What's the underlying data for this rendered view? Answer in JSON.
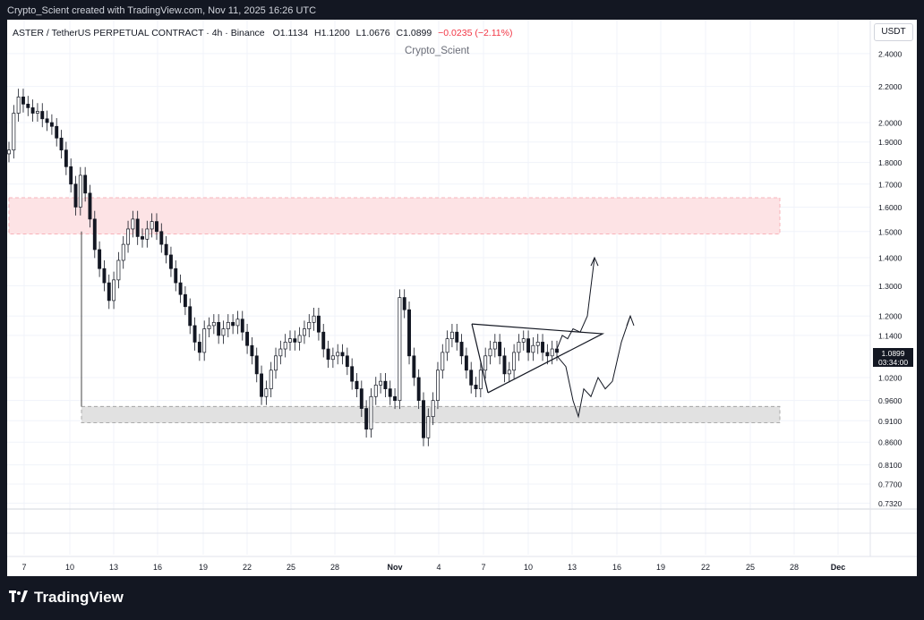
{
  "header": {
    "attribution": "Crypto_Scient created with TradingView.com, Nov 11, 2025 16:26 UTC"
  },
  "legend": {
    "symbol": "ASTER / TetherUS PERPETUAL CONTRACT · 4h · Binance",
    "open": "O1.1134",
    "high": "H1.1200",
    "low": "L1.0676",
    "close": "C1.0899",
    "change": "−0.0235 (−2.11%)",
    "change_color": "#f23645"
  },
  "watermark": "Crypto_Scient",
  "currency": "USDT",
  "last_price": {
    "value": "1.0899",
    "countdown": "03:34:00"
  },
  "footer": {
    "brand": "TradingView"
  },
  "chart_data": {
    "type": "line",
    "title": "ASTER / TetherUS PERPETUAL CONTRACT · 4h · Binance",
    "y_scale": "log",
    "y_ticks": [
      "2.4000",
      "2.2000",
      "2.0000",
      "1.9000",
      "1.8000",
      "1.7000",
      "1.6000",
      "1.5000",
      "1.4000",
      "1.3000",
      "1.2000",
      "1.1400",
      "1.0200",
      "0.9600",
      "0.9100",
      "0.8600",
      "0.8100",
      "0.7700",
      "0.7320"
    ],
    "x_ticks": [
      "7",
      "10",
      "13",
      "16",
      "19",
      "22",
      "25",
      "28",
      "Nov",
      "4",
      "7",
      "10",
      "13",
      "16",
      "19",
      "22",
      "25",
      "28",
      "Dec"
    ],
    "resistance_zone": [
      1.49,
      1.64
    ],
    "support_zone": [
      0.905,
      0.945
    ],
    "colors": {
      "up": "#089981",
      "down": "#131722",
      "resistance_zone": "#fde3e5",
      "support_zone": "#e1e1e1"
    },
    "series": [
      {
        "values": [
          1.86,
          2.05,
          2.14,
          2.1,
          2.08,
          2.05,
          2.06,
          2.02,
          2.0,
          1.98,
          1.92,
          1.86,
          1.78,
          1.7,
          1.6,
          1.74,
          1.66,
          1.55,
          1.43,
          1.36,
          1.31,
          1.25,
          1.32,
          1.39,
          1.45,
          1.51,
          1.55,
          1.48,
          1.47,
          1.51,
          1.54,
          1.5,
          1.45,
          1.41,
          1.36,
          1.31,
          1.27,
          1.23,
          1.17,
          1.12,
          1.09,
          1.16,
          1.17,
          1.18,
          1.14,
          1.16,
          1.18,
          1.17,
          1.19,
          1.15,
          1.11,
          1.08,
          1.03,
          0.97,
          0.99,
          1.04,
          1.08,
          1.1,
          1.12,
          1.13,
          1.12,
          1.14,
          1.16,
          1.18,
          1.2,
          1.15,
          1.1,
          1.07,
          1.08,
          1.09,
          1.08,
          1.05,
          1.01,
          0.99,
          0.94,
          0.89,
          0.97,
          1.0,
          1.01,
          0.99,
          0.97,
          0.96,
          1.26,
          1.22,
          1.08,
          1.02,
          0.96,
          0.87,
          0.92,
          0.96,
          1.04,
          1.09,
          1.13,
          1.15,
          1.12,
          1.08,
          1.04,
          1.0,
          0.99,
          1.04,
          1.08,
          1.1,
          1.12,
          1.08,
          1.03,
          1.04,
          1.09,
          1.12,
          1.13,
          1.09,
          1.11,
          1.12,
          1.09,
          1.08,
          1.1,
          1.09
        ]
      }
    ],
    "triangle": {
      "upper": [
        1.175,
        1.145
      ],
      "lower": [
        0.98,
        1.145
      ]
    },
    "projection_up": [
      1.1,
      1.14,
      1.13,
      1.16,
      1.15,
      1.2,
      1.4
    ],
    "projection_down_up": [
      1.08,
      1.05,
      0.96,
      0.92,
      0.99,
      0.97,
      1.02,
      0.99,
      1.01,
      1.12,
      1.2
    ]
  }
}
